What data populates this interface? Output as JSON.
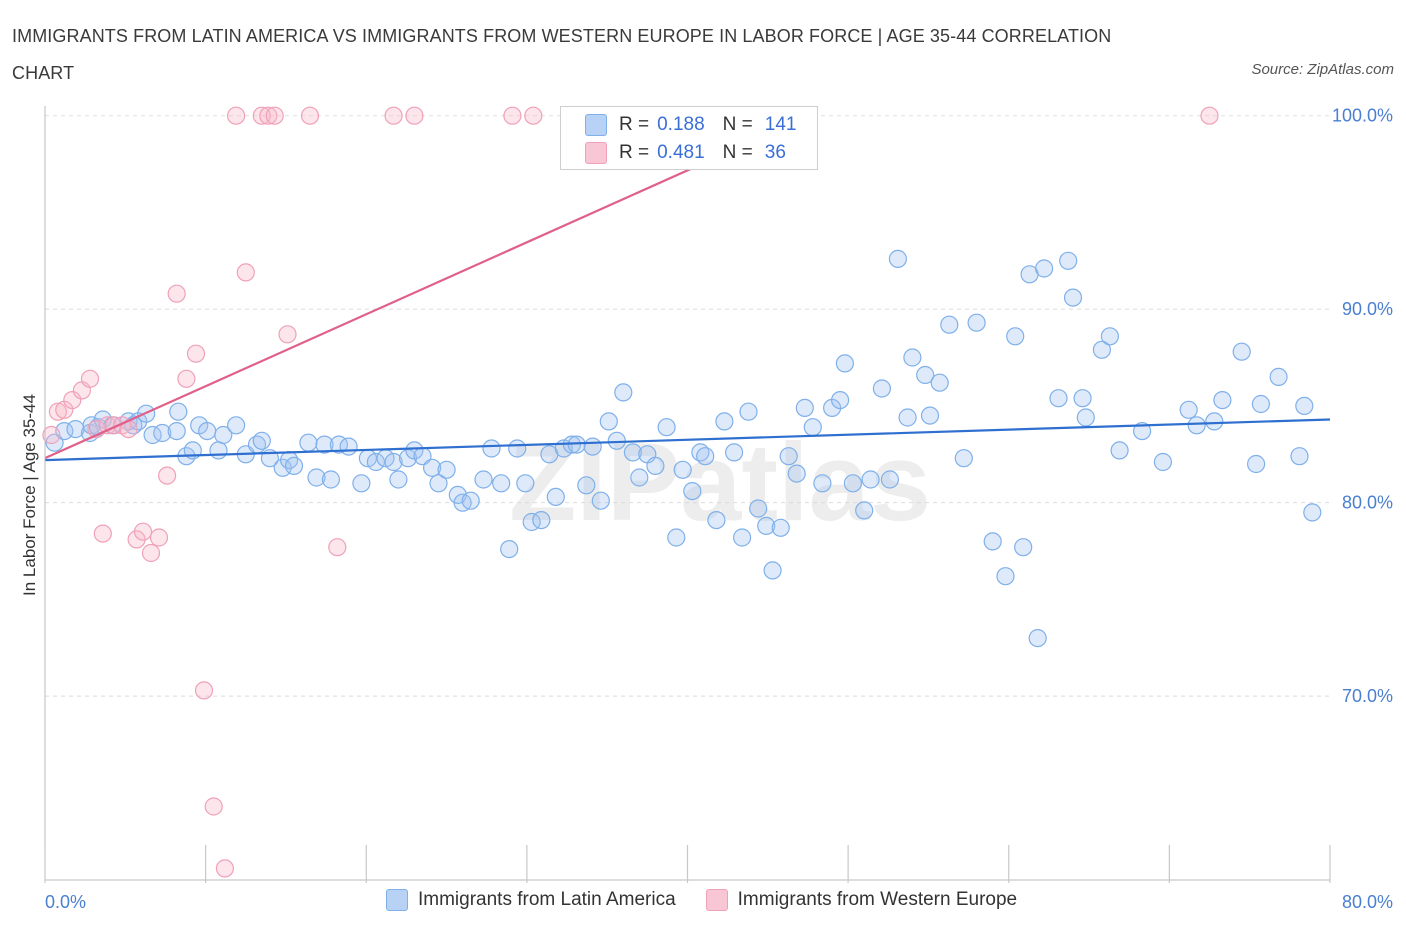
{
  "title": "IMMIGRANTS FROM LATIN AMERICA VS IMMIGRANTS FROM WESTERN EUROPE IN LABOR FORCE | AGE 35-44 CORRELATION CHART",
  "source": "Source: ZipAtlas.com",
  "watermark": "ZIPatlas",
  "legend": {
    "rows": [
      {
        "r_label": "R =",
        "r_value": "0.188",
        "n_label": "N =",
        "n_value": "141"
      },
      {
        "r_label": "R =",
        "r_value": "0.481",
        "n_label": "N =",
        "n_value": "36"
      }
    ]
  },
  "chart_data": {
    "type": "scatter",
    "ylabel": "In Labor Force | Age 35-44",
    "xlim": [
      0,
      80
    ],
    "ylim": [
      60.5,
      100.5
    ],
    "x_tick_labels": [
      "0.0%",
      "80.0%"
    ],
    "y_ticks": [
      70,
      80,
      90,
      100
    ],
    "y_tick_labels": [
      "70.0%",
      "80.0%",
      "90.0%",
      "100.0%"
    ],
    "grid": true,
    "legend_position": "bottom",
    "series": [
      {
        "name": "Immigrants from Latin America",
        "color": "#7fb0ea",
        "fill": "rgba(160,196,240,0.35)",
        "line_color": "#2e6fd0",
        "trend": [
          [
            0,
            82.2
          ],
          [
            80,
            84.3
          ]
        ],
        "points": [
          [
            0.6,
            83.1
          ],
          [
            1.2,
            83.7
          ],
          [
            1.9,
            83.8
          ],
          [
            2.8,
            83.6
          ],
          [
            2.9,
            84.0
          ],
          [
            3.3,
            83.9
          ],
          [
            3.6,
            84.3
          ],
          [
            4.2,
            84.0
          ],
          [
            5.2,
            84.2
          ],
          [
            5.5,
            84.0
          ],
          [
            5.8,
            84.2
          ],
          [
            6.3,
            84.6
          ],
          [
            6.7,
            83.5
          ],
          [
            7.3,
            83.6
          ],
          [
            8.2,
            83.7
          ],
          [
            8.3,
            84.7
          ],
          [
            8.8,
            82.4
          ],
          [
            9.2,
            82.7
          ],
          [
            9.6,
            84.0
          ],
          [
            10.1,
            83.7
          ],
          [
            10.8,
            82.7
          ],
          [
            11.1,
            83.5
          ],
          [
            11.9,
            84.0
          ],
          [
            12.5,
            82.5
          ],
          [
            13.2,
            83.0
          ],
          [
            13.5,
            83.2
          ],
          [
            14.0,
            82.3
          ],
          [
            14.8,
            81.8
          ],
          [
            15.2,
            82.2
          ],
          [
            15.5,
            81.9
          ],
          [
            16.4,
            83.1
          ],
          [
            16.9,
            81.3
          ],
          [
            17.4,
            83.0
          ],
          [
            17.8,
            81.2
          ],
          [
            18.3,
            83.0
          ],
          [
            18.9,
            82.9
          ],
          [
            19.7,
            81.0
          ],
          [
            20.1,
            82.3
          ],
          [
            20.6,
            82.1
          ],
          [
            21.2,
            82.3
          ],
          [
            21.7,
            82.1
          ],
          [
            22.0,
            81.2
          ],
          [
            22.6,
            82.3
          ],
          [
            23.0,
            82.7
          ],
          [
            23.5,
            82.4
          ],
          [
            24.1,
            81.8
          ],
          [
            24.5,
            81.0
          ],
          [
            25.0,
            81.7
          ],
          [
            25.7,
            80.4
          ],
          [
            26.0,
            80.0
          ],
          [
            26.5,
            80.1
          ],
          [
            27.3,
            81.2
          ],
          [
            27.8,
            82.8
          ],
          [
            28.4,
            81.0
          ],
          [
            28.9,
            77.6
          ],
          [
            29.4,
            82.8
          ],
          [
            29.9,
            81.0
          ],
          [
            30.3,
            79.0
          ],
          [
            30.9,
            79.1
          ],
          [
            31.4,
            82.5
          ],
          [
            31.8,
            80.3
          ],
          [
            32.3,
            82.8
          ],
          [
            32.8,
            83.0
          ],
          [
            33.1,
            83.0
          ],
          [
            33.7,
            80.9
          ],
          [
            34.1,
            82.9
          ],
          [
            34.6,
            80.1
          ],
          [
            35.1,
            84.2
          ],
          [
            35.6,
            83.2
          ],
          [
            36.0,
            85.7
          ],
          [
            36.6,
            82.6
          ],
          [
            37.0,
            81.3
          ],
          [
            37.5,
            82.5
          ],
          [
            38.0,
            81.9
          ],
          [
            38.7,
            83.9
          ],
          [
            39.3,
            78.2
          ],
          [
            39.7,
            81.7
          ],
          [
            40.3,
            80.6
          ],
          [
            40.8,
            82.6
          ],
          [
            41.1,
            82.4
          ],
          [
            41.8,
            79.1
          ],
          [
            42.3,
            84.2
          ],
          [
            42.9,
            82.6
          ],
          [
            43.4,
            78.2
          ],
          [
            43.8,
            84.7
          ],
          [
            44.4,
            79.7
          ],
          [
            44.9,
            78.8
          ],
          [
            45.3,
            76.5
          ],
          [
            45.8,
            78.7
          ],
          [
            46.3,
            82.4
          ],
          [
            46.8,
            81.5
          ],
          [
            47.3,
            84.9
          ],
          [
            47.8,
            83.9
          ],
          [
            48.4,
            81.0
          ],
          [
            49.0,
            84.9
          ],
          [
            49.5,
            85.3
          ],
          [
            49.8,
            87.2
          ],
          [
            50.3,
            81.0
          ],
          [
            51.0,
            79.6
          ],
          [
            51.4,
            81.2
          ],
          [
            52.1,
            85.9
          ],
          [
            52.6,
            81.2
          ],
          [
            53.1,
            92.6
          ],
          [
            53.7,
            84.4
          ],
          [
            54.0,
            87.5
          ],
          [
            54.8,
            86.6
          ],
          [
            55.1,
            84.5
          ],
          [
            55.7,
            86.2
          ],
          [
            56.3,
            89.2
          ],
          [
            57.2,
            82.3
          ],
          [
            58.0,
            89.3
          ],
          [
            59.0,
            78.0
          ],
          [
            59.8,
            76.2
          ],
          [
            60.4,
            88.6
          ],
          [
            60.9,
            77.7
          ],
          [
            61.3,
            91.8
          ],
          [
            61.8,
            73.0
          ],
          [
            62.2,
            92.1
          ],
          [
            63.1,
            85.4
          ],
          [
            63.7,
            92.5
          ],
          [
            64.0,
            90.6
          ],
          [
            64.6,
            85.4
          ],
          [
            64.8,
            84.4
          ],
          [
            65.8,
            87.9
          ],
          [
            66.3,
            88.6
          ],
          [
            66.9,
            82.7
          ],
          [
            68.3,
            83.7
          ],
          [
            69.6,
            82.1
          ],
          [
            71.2,
            84.8
          ],
          [
            71.7,
            84.0
          ],
          [
            72.8,
            84.2
          ],
          [
            73.3,
            85.3
          ],
          [
            74.5,
            87.8
          ],
          [
            75.4,
            82.0
          ],
          [
            75.7,
            85.1
          ],
          [
            76.8,
            86.5
          ],
          [
            78.1,
            82.4
          ],
          [
            78.4,
            85.0
          ],
          [
            78.9,
            79.5
          ]
        ]
      },
      {
        "name": "Immigrants from Western Europe",
        "color": "#f0a0b8",
        "fill": "rgba(246,182,200,0.35)",
        "line_color": "#e0608a",
        "trend": [
          [
            0,
            82.3
          ],
          [
            47.6,
            100.0
          ]
        ],
        "points": [
          [
            0.4,
            83.5
          ],
          [
            0.8,
            84.7
          ],
          [
            1.2,
            84.8
          ],
          [
            1.7,
            85.3
          ],
          [
            2.3,
            85.8
          ],
          [
            2.8,
            86.4
          ],
          [
            3.2,
            83.8
          ],
          [
            3.6,
            78.4
          ],
          [
            3.9,
            84.0
          ],
          [
            4.3,
            84.0
          ],
          [
            4.8,
            84.0
          ],
          [
            5.2,
            83.8
          ],
          [
            5.7,
            78.1
          ],
          [
            6.1,
            78.5
          ],
          [
            6.6,
            77.4
          ],
          [
            7.1,
            78.2
          ],
          [
            7.6,
            81.4
          ],
          [
            8.2,
            90.8
          ],
          [
            8.8,
            86.4
          ],
          [
            9.4,
            87.7
          ],
          [
            9.9,
            70.3
          ],
          [
            10.5,
            64.3
          ],
          [
            11.2,
            61.1
          ],
          [
            11.9,
            100
          ],
          [
            12.5,
            91.9
          ],
          [
            13.5,
            100
          ],
          [
            13.9,
            100
          ],
          [
            14.3,
            100
          ],
          [
            15.1,
            88.7
          ],
          [
            16.5,
            100
          ],
          [
            18.2,
            77.7
          ],
          [
            21.7,
            100
          ],
          [
            23.0,
            100
          ],
          [
            29.1,
            100
          ],
          [
            30.4,
            100
          ],
          [
            72.5,
            100
          ]
        ]
      }
    ]
  }
}
